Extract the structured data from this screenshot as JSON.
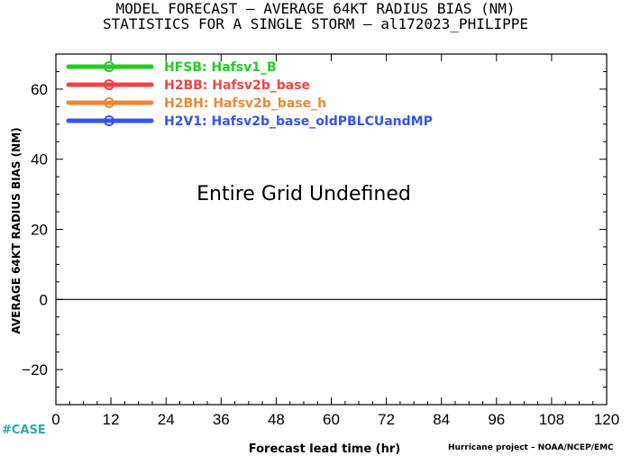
{
  "header": {
    "title_line1": "MODEL FORECAST – AVERAGE 64KT RADIUS BIAS (NM)",
    "title_line2": "STATISTICS FOR A SINGLE STORM – al172023_PHILIPPE"
  },
  "chart_data": {
    "type": "line",
    "xlabel": "Forecast lead time (hr)",
    "ylabel": "AVERAGE 64KT RADIUS BIAS (NM)",
    "xlim": [
      0,
      120
    ],
    "ylim": [
      -30,
      70
    ],
    "x_ticks": [
      0,
      12,
      24,
      36,
      48,
      60,
      72,
      84,
      96,
      108,
      120
    ],
    "x_tick_labels": [
      "0",
      "12",
      "24",
      "36",
      "48",
      "60",
      "72",
      "84",
      "96",
      "108",
      "120"
    ],
    "y_ticks": [
      -20,
      0,
      20,
      40,
      60
    ],
    "y_tick_labels": [
      "−20",
      "0",
      "20",
      "40",
      "60"
    ],
    "zero_line": 0,
    "grid": false,
    "legend_placement": "top-left",
    "annotation": "Entire Grid Undefined",
    "series": [
      {
        "name": "HFSB: Hafsv1_B",
        "color": "#22cc22",
        "values": []
      },
      {
        "name": "H2BB: Hafsv2b_base",
        "color": "#ee4444",
        "values": []
      },
      {
        "name": "H2BH: Hafsv2b_base_h",
        "color": "#ee8833",
        "values": []
      },
      {
        "name": "H2V1: Hafsv2b_base_oldPBLCUandMP",
        "color": "#3355ee",
        "values": []
      }
    ]
  },
  "footer": {
    "case_tag": "#CASE",
    "credit": "Hurricane project – NOAA/NCEP/EMC"
  }
}
